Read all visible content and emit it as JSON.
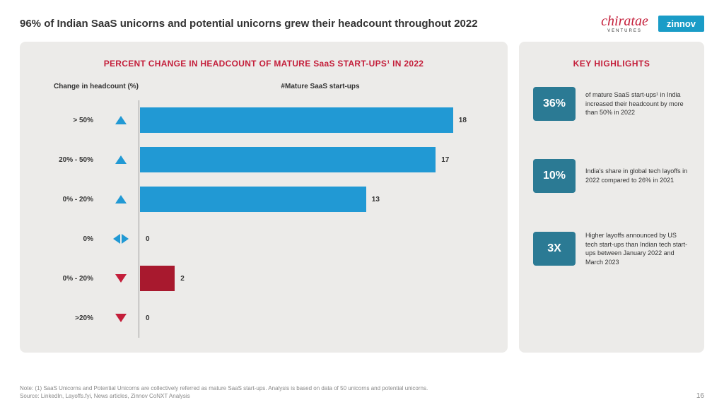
{
  "title": "96% of Indian SaaS unicorns and potential unicorns grew their headcount throughout 2022",
  "logos": {
    "chiratae": "chiratae",
    "chiratae_sub": "VENTURES",
    "zinnov": "zinnov"
  },
  "chart": {
    "title": "PERCENT CHANGE IN HEADCOUNT OF MATURE SaaS START-UPS¹ IN 2022",
    "header_left": "Change in headcount (%)",
    "header_right": "#Mature SaaS start-ups",
    "type": "bar",
    "max_value": 20,
    "bar_colors": {
      "up": "#2199d4",
      "down": "#a8192e"
    },
    "rows": [
      {
        "label": "> 50%",
        "dir": "up",
        "value": 18
      },
      {
        "label": "20% - 50%",
        "dir": "up",
        "value": 17
      },
      {
        "label": "0% - 20%",
        "dir": "up",
        "value": 13
      },
      {
        "label": "0%",
        "dir": "both",
        "value": 0
      },
      {
        "label": "0% - 20%",
        "dir": "down",
        "value": 2
      },
      {
        "label": ">20%",
        "dir": "down",
        "value": 0
      }
    ]
  },
  "highlights": {
    "title": "KEY HIGHLIGHTS",
    "badge_color": "#2b7a94",
    "items": [
      {
        "badge": "36%",
        "text": "of mature SaaS start-ups¹ in India increased their headcount by more than 50% in 2022"
      },
      {
        "badge": "10%",
        "text": "India's share in global tech layoffs in 2022 compared to 26% in 2021"
      },
      {
        "badge": "3X",
        "text": "Higher layoffs announced by US tech start-ups than Indian tech start-ups between January 2022 and March 2023"
      }
    ]
  },
  "footer": {
    "note": "Note: (1) SaaS Unicorns and Potential Unicorns are collectively referred as mature SaaS start-ups. Analysis is based on data of 50 unicorns and potential unicorns.",
    "source": "Source: LinkedIn, Layoffs.fyi, News articles, Zinnov CoNXT Analysis",
    "page": "16"
  }
}
